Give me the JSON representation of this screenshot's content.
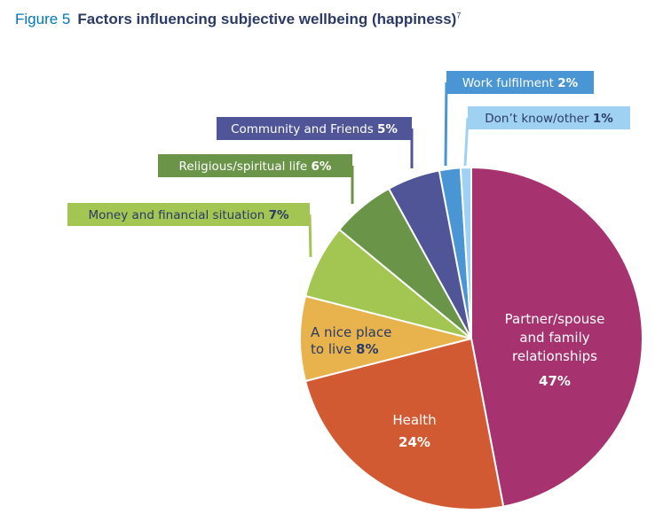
{
  "figure": {
    "number": "Figure 5",
    "title": "Factors influencing subjective wellbeing (happiness)",
    "footnote_ref": "7"
  },
  "chart_data": {
    "type": "pie",
    "title": "Factors influencing subjective wellbeing (happiness)",
    "start_angle_deg": 0,
    "direction": "clockwise",
    "slices": [
      {
        "key": "partner",
        "label_lines": [
          "Partner/spouse",
          "and family",
          "relationships"
        ],
        "value": 47,
        "value_text": "47%",
        "color": "#a6336f",
        "label_style": "inside"
      },
      {
        "key": "health",
        "label_lines": [
          "Health"
        ],
        "value": 24,
        "value_text": "24%",
        "color": "#d25a33",
        "label_style": "inside"
      },
      {
        "key": "nice_place",
        "label_lines": [
          "A nice place",
          "to live"
        ],
        "value": 8,
        "value_text": "8%",
        "color": "#e8b34c",
        "label_style": "inside-dark"
      },
      {
        "key": "money",
        "label_text": "Money and financial situation",
        "value": 7,
        "value_text": "7%",
        "color": "#a3c653",
        "box_color": "#a3c653",
        "text_color": "#2b3a66",
        "label_style": "callout"
      },
      {
        "key": "religious",
        "label_text": "Religious/spiritual life",
        "value": 6,
        "value_text": "6%",
        "color": "#6a9447",
        "box_color": "#6a9447",
        "text_color": "#ffffff",
        "label_style": "callout"
      },
      {
        "key": "community",
        "label_text": "Community and Friends",
        "value": 5,
        "value_text": "5%",
        "color": "#4f5596",
        "box_color": "#4f5596",
        "text_color": "#ffffff",
        "label_style": "callout"
      },
      {
        "key": "work",
        "label_text": "Work fulfilment",
        "value": 2,
        "value_text": "2%",
        "color": "#4a95d3",
        "box_color": "#4a95d3",
        "text_color": "#ffffff",
        "label_style": "callout"
      },
      {
        "key": "dontknow",
        "label_text": "Don’t know/other",
        "value": 1,
        "value_text": "1%",
        "color": "#9fd2f2",
        "box_color": "#9fd2f2",
        "text_color": "#2b3a66",
        "label_style": "callout"
      }
    ]
  }
}
